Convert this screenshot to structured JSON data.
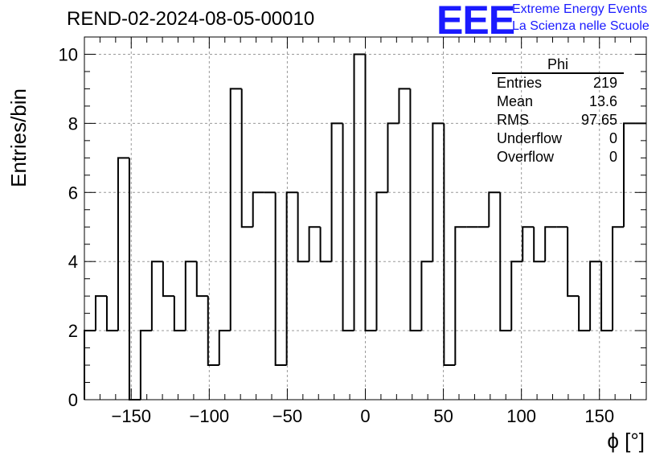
{
  "header": {
    "run_title": "REND-02-2024-08-05-00010",
    "logo_text": "EEE",
    "logo_line1": "Extreme Energy Events",
    "logo_line2": "La Scienza nelle Scuole"
  },
  "stats_box": {
    "title": "Phi",
    "rows": [
      {
        "label": "Entries",
        "value": "219"
      },
      {
        "label": "Mean",
        "value": "13.6"
      },
      {
        "label": "RMS",
        "value": "97.65"
      },
      {
        "label": "Underflow",
        "value": "0"
      },
      {
        "label": "Overflow",
        "value": "0"
      }
    ]
  },
  "chart_data": {
    "type": "histogram",
    "xlabel": "ϕ [°]",
    "ylabel": "Entries/bin",
    "xlim": [
      -180,
      180
    ],
    "ylim": [
      0,
      10.5
    ],
    "bin_width": 7.2,
    "bin_edges_start": -180,
    "values": [
      2,
      3,
      2,
      7,
      0,
      2,
      4,
      3,
      2,
      4,
      3,
      1,
      2,
      9,
      5,
      6,
      6,
      1,
      6,
      4,
      5,
      4,
      8,
      2,
      10,
      2,
      6,
      8,
      9,
      2,
      4,
      8,
      1,
      5,
      5,
      5,
      6,
      2,
      4,
      5,
      4,
      5,
      5,
      3,
      2,
      4,
      2,
      5,
      8,
      8
    ],
    "x_ticks": [
      -150,
      -100,
      -50,
      0,
      50,
      100,
      150
    ],
    "x_tick_labels": [
      "−150",
      "−100",
      "−50",
      "0",
      "50",
      "100",
      "150"
    ],
    "y_ticks": [
      0,
      2,
      4,
      6,
      8,
      10
    ],
    "y_tick_labels": [
      "0",
      "2",
      "4",
      "6",
      "8",
      "10"
    ],
    "grid": true,
    "line_color": "#000000",
    "grid_color": "#9a9a9a"
  }
}
